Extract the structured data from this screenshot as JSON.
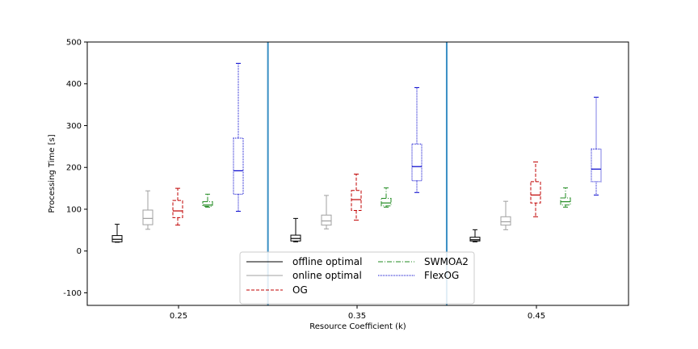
{
  "chart_data": {
    "type": "box",
    "xlabel": "Resource Coefficient (k)",
    "ylabel": "Processing Time [s]",
    "ylim": [
      -130,
      500
    ],
    "yticks": [
      -100,
      0,
      100,
      200,
      300,
      400,
      500
    ],
    "grid": false,
    "groups": [
      "0.25",
      "0.35",
      "0.45"
    ],
    "dividers": [
      0.3,
      0.4
    ],
    "divider_color": "#3a8fc4",
    "legend_position": "lower-center",
    "series": [
      {
        "name": "offline optimal",
        "color": "#000000",
        "dash": "",
        "boxes": [
          {
            "whislo": 21,
            "q1": 22,
            "med": 28,
            "q3": 37,
            "whishi": 64
          },
          {
            "whislo": 22,
            "q1": 24,
            "med": 30,
            "q3": 38,
            "whishi": 78
          },
          {
            "whislo": 22,
            "q1": 24,
            "med": 27,
            "q3": 33,
            "whishi": 51
          }
        ]
      },
      {
        "name": "online optimal",
        "color": "#a0a0a0",
        "dash": "",
        "boxes": [
          {
            "whislo": 52,
            "q1": 63,
            "med": 78,
            "q3": 98,
            "whishi": 144
          },
          {
            "whislo": 53,
            "q1": 62,
            "med": 72,
            "q3": 86,
            "whishi": 133
          },
          {
            "whislo": 51,
            "q1": 62,
            "med": 70,
            "q3": 82,
            "whishi": 119
          }
        ]
      },
      {
        "name": "OG",
        "color": "#c00000",
        "dash": "4,2",
        "boxes": [
          {
            "whislo": 62,
            "q1": 80,
            "med": 96,
            "q3": 121,
            "whishi": 150
          },
          {
            "whislo": 74,
            "q1": 97,
            "med": 123,
            "q3": 145,
            "whishi": 184
          },
          {
            "whislo": 82,
            "q1": 115,
            "med": 134,
            "q3": 166,
            "whishi": 213
          }
        ]
      },
      {
        "name": "SWMOA2",
        "color": "#228b22",
        "dash": "6,2,1,2",
        "boxes": [
          {
            "whislo": 105,
            "q1": 107,
            "med": 110,
            "q3": 118,
            "whishi": 136
          },
          {
            "whislo": 105,
            "q1": 108,
            "med": 115,
            "q3": 126,
            "whishi": 151
          },
          {
            "whislo": 105,
            "q1": 110,
            "med": 118,
            "q3": 127,
            "whishi": 151
          }
        ]
      },
      {
        "name": "FlexOG",
        "color": "#0000cc",
        "dash": "1,1",
        "boxes": [
          {
            "whislo": 95,
            "q1": 136,
            "med": 192,
            "q3": 270,
            "whishi": 449
          },
          {
            "whislo": 140,
            "q1": 168,
            "med": 202,
            "q3": 256,
            "whishi": 391
          },
          {
            "whislo": 134,
            "q1": 166,
            "med": 196,
            "q3": 244,
            "whishi": 368
          }
        ]
      }
    ]
  }
}
